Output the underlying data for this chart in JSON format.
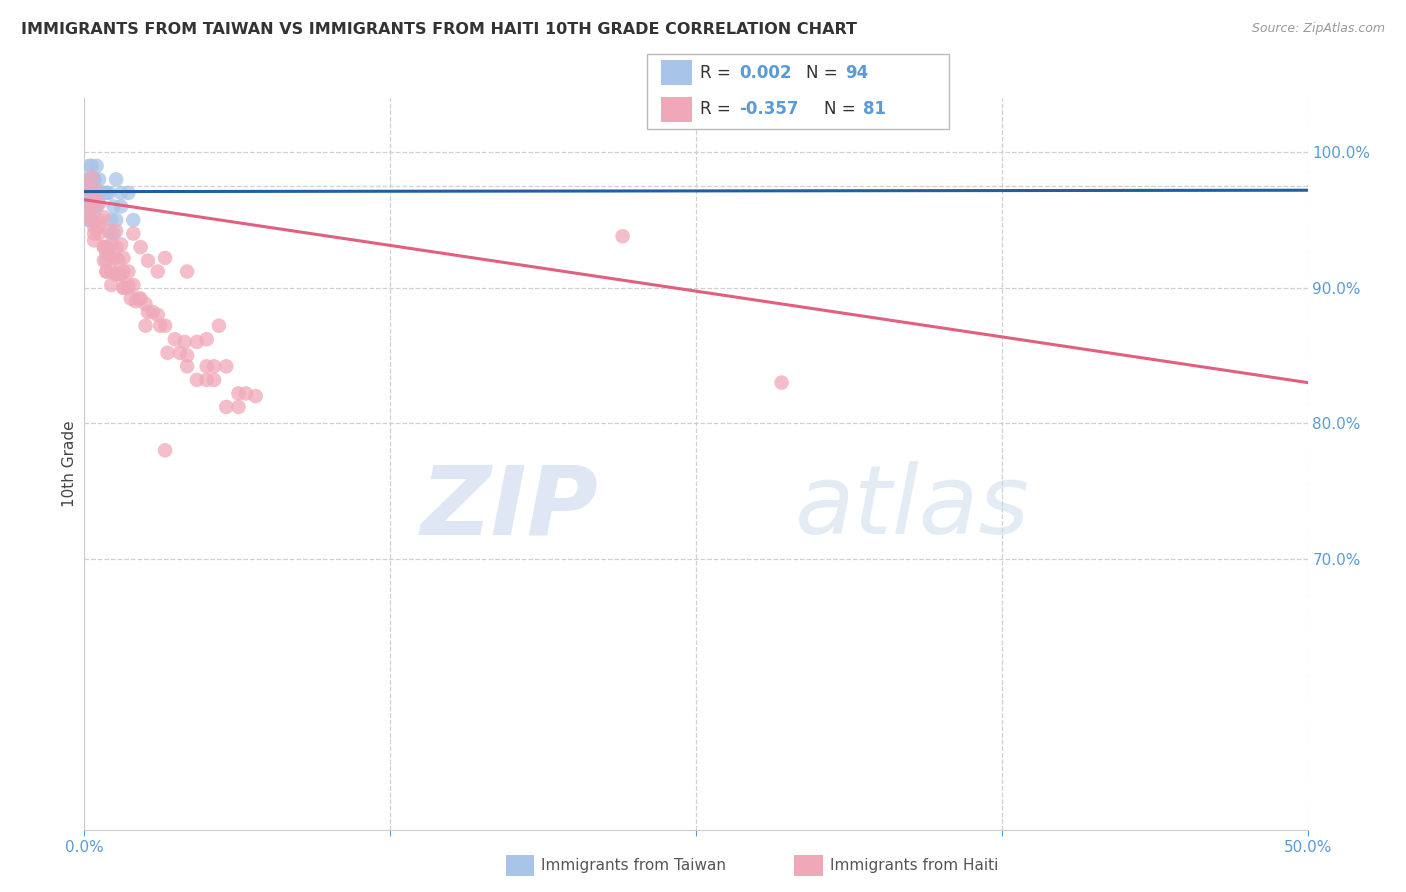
{
  "title": "IMMIGRANTS FROM TAIWAN VS IMMIGRANTS FROM HAITI 10TH GRADE CORRELATION CHART",
  "source": "Source: ZipAtlas.com",
  "ylabel": "10th Grade",
  "taiwan_color": "#a8c4e8",
  "haiti_color": "#f0a8b8",
  "taiwan_line_color": "#2060a0",
  "haiti_line_color": "#e06080",
  "taiwan_scatter_x": [
    0.002,
    0.004,
    0.003,
    0.005,
    0.003,
    0.002,
    0.006,
    0.003,
    0.004,
    0.002,
    0.003,
    0.004,
    0.002,
    0.003,
    0.006,
    0.004,
    0.003,
    0.002,
    0.004,
    0.003,
    0.002,
    0.006,
    0.003,
    0.005,
    0.002,
    0.003,
    0.008,
    0.002,
    0.005,
    0.003,
    0.002,
    0.006,
    0.003,
    0.004,
    0.002,
    0.009,
    0.003,
    0.002,
    0.004,
    0.003,
    0.002,
    0.007,
    0.003,
    0.004,
    0.002,
    0.003,
    0.006,
    0.004,
    0.002,
    0.003,
    0.002,
    0.004,
    0.003,
    0.006,
    0.002,
    0.003,
    0.005,
    0.002,
    0.006,
    0.003,
    0.002,
    0.004,
    0.003,
    0.007,
    0.002,
    0.003,
    0.004,
    0.002,
    0.006,
    0.003,
    0.002,
    0.004,
    0.003,
    0.009,
    0.002,
    0.003,
    0.005,
    0.003,
    0.002,
    0.006,
    0.018,
    0.012,
    0.01,
    0.013,
    0.015,
    0.009,
    0.011,
    0.012,
    0.015,
    0.013,
    0.02,
    0.009,
    0.011,
    0.013
  ],
  "taiwan_scatter_y": [
    0.97,
    0.98,
    0.96,
    0.99,
    0.97,
    0.98,
    0.97,
    0.96,
    0.98,
    0.97,
    0.99,
    0.97,
    0.98,
    0.96,
    0.97,
    0.98,
    0.97,
    0.96,
    0.97,
    0.98,
    0.95,
    0.97,
    0.98,
    0.97,
    0.96,
    0.97,
    0.97,
    0.98,
    0.97,
    0.96,
    0.97,
    0.98,
    0.97,
    0.96,
    0.97,
    0.97,
    0.96,
    0.97,
    0.98,
    0.97,
    0.96,
    0.97,
    0.98,
    0.97,
    0.96,
    0.95,
    0.97,
    0.97,
    0.98,
    0.97,
    0.99,
    0.97,
    0.96,
    0.97,
    0.98,
    0.97,
    0.96,
    0.95,
    0.97,
    0.98,
    0.97,
    0.96,
    0.97,
    0.97,
    0.98,
    0.97,
    0.96,
    0.97,
    0.97,
    0.98,
    0.96,
    0.97,
    0.98,
    0.97,
    0.96,
    0.97,
    0.97,
    0.95,
    0.96,
    0.97,
    0.97,
    0.96,
    0.97,
    0.98,
    0.97,
    0.93,
    0.95,
    0.94,
    0.96,
    0.95,
    0.95,
    0.92,
    0.94,
    0.91
  ],
  "haiti_scatter_x": [
    0.001,
    0.003,
    0.002,
    0.004,
    0.003,
    0.006,
    0.004,
    0.008,
    0.003,
    0.006,
    0.004,
    0.009,
    0.006,
    0.008,
    0.011,
    0.009,
    0.013,
    0.008,
    0.011,
    0.014,
    0.009,
    0.013,
    0.016,
    0.011,
    0.015,
    0.018,
    0.013,
    0.016,
    0.019,
    0.014,
    0.018,
    0.022,
    0.016,
    0.025,
    0.02,
    0.023,
    0.026,
    0.021,
    0.03,
    0.025,
    0.033,
    0.028,
    0.037,
    0.031,
    0.041,
    0.034,
    0.046,
    0.039,
    0.05,
    0.042,
    0.053,
    0.046,
    0.058,
    0.05,
    0.063,
    0.053,
    0.066,
    0.058,
    0.07,
    0.063,
    0.003,
    0.005,
    0.006,
    0.008,
    0.01,
    0.011,
    0.013,
    0.015,
    0.016,
    0.018,
    0.02,
    0.023,
    0.026,
    0.03,
    0.033,
    0.042,
    0.05,
    0.055,
    0.042,
    0.033,
    0.22,
    0.285
  ],
  "haiti_scatter_y": [
    0.975,
    0.965,
    0.955,
    0.945,
    0.96,
    0.95,
    0.94,
    0.93,
    0.95,
    0.945,
    0.935,
    0.925,
    0.94,
    0.93,
    0.922,
    0.912,
    0.93,
    0.92,
    0.912,
    0.92,
    0.912,
    0.922,
    0.912,
    0.902,
    0.91,
    0.9,
    0.91,
    0.9,
    0.892,
    0.91,
    0.902,
    0.892,
    0.9,
    0.888,
    0.902,
    0.892,
    0.882,
    0.89,
    0.88,
    0.872,
    0.872,
    0.882,
    0.862,
    0.872,
    0.86,
    0.852,
    0.86,
    0.852,
    0.842,
    0.85,
    0.842,
    0.832,
    0.842,
    0.832,
    0.822,
    0.832,
    0.822,
    0.812,
    0.82,
    0.812,
    0.982,
    0.972,
    0.962,
    0.952,
    0.942,
    0.932,
    0.942,
    0.932,
    0.922,
    0.912,
    0.94,
    0.93,
    0.92,
    0.912,
    0.922,
    0.912,
    0.862,
    0.872,
    0.842,
    0.78,
    0.938,
    0.83
  ],
  "taiwan_trend_x": [
    0.0,
    0.5
  ],
  "taiwan_trend_y": [
    0.971,
    0.972
  ],
  "haiti_trend_x": [
    0.0,
    0.5
  ],
  "haiti_trend_y": [
    0.965,
    0.83
  ],
  "xlim": [
    0.0,
    0.5
  ],
  "ylim": [
    0.5,
    1.04
  ],
  "ygrid_values": [
    1.0,
    0.975,
    0.9,
    0.8,
    0.7
  ],
  "ytick_vals": [
    1.0,
    0.9,
    0.8,
    0.7
  ],
  "ytick_labels": [
    "100.0%",
    "90.0%",
    "80.0%",
    "70.0%"
  ],
  "xtick_vals": [
    0.0,
    0.125,
    0.25,
    0.375,
    0.5
  ],
  "xtick_labels": [
    "0.0%",
    "",
    "",
    "",
    "50.0%"
  ],
  "label_color": "#5b9bd5",
  "grid_color": "#d0d0d0",
  "background_color": "#ffffff",
  "watermark_zip_color": "#c8d8ec",
  "watermark_atlas_color": "#c8d8ec"
}
